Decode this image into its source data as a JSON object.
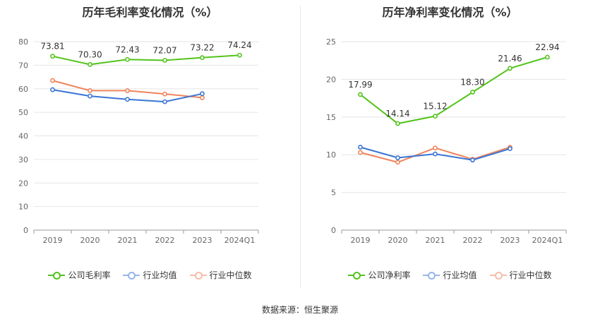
{
  "source_text": "数据来源：恒生聚源",
  "chart_data": [
    {
      "type": "line",
      "title": "历年毛利率变化情况（%）",
      "categories": [
        "2019",
        "2020",
        "2021",
        "2022",
        "2023",
        "2024Q1"
      ],
      "ylim": [
        0,
        80
      ],
      "yticks": [
        0,
        10,
        20,
        30,
        40,
        50,
        60,
        70,
        80
      ],
      "grid": true,
      "legend_position": "bottom",
      "series": [
        {
          "name": "公司毛利率",
          "color": "#52c41a",
          "values": [
            73.81,
            70.3,
            72.43,
            72.07,
            73.22,
            74.24
          ],
          "show_labels": true
        },
        {
          "name": "行业均值",
          "color": "#3a75d6",
          "values": [
            59.6,
            56.9,
            55.5,
            54.5,
            57.9,
            null
          ],
          "show_labels": false
        },
        {
          "name": "行业中位数",
          "color": "#f0845c",
          "values": [
            63.5,
            59.2,
            59.2,
            57.8,
            56.2,
            null
          ],
          "show_labels": false
        }
      ]
    },
    {
      "type": "line",
      "title": "历年净利率变化情况（%）",
      "categories": [
        "2019",
        "2020",
        "2021",
        "2022",
        "2023",
        "2024Q1"
      ],
      "ylim": [
        0,
        25
      ],
      "yticks": [
        0,
        5,
        10,
        15,
        20,
        25
      ],
      "grid": true,
      "legend_position": "bottom",
      "series": [
        {
          "name": "公司净利率",
          "color": "#52c41a",
          "values": [
            17.99,
            14.14,
            15.12,
            18.3,
            21.46,
            22.94
          ],
          "show_labels": true
        },
        {
          "name": "行业均值",
          "color": "#3a75d6",
          "values": [
            11.0,
            9.6,
            10.1,
            9.3,
            10.8,
            null
          ],
          "show_labels": false
        },
        {
          "name": "行业中位数",
          "color": "#f0845c",
          "values": [
            10.3,
            9.0,
            10.9,
            9.4,
            11.0,
            null
          ],
          "show_labels": false
        }
      ]
    }
  ]
}
